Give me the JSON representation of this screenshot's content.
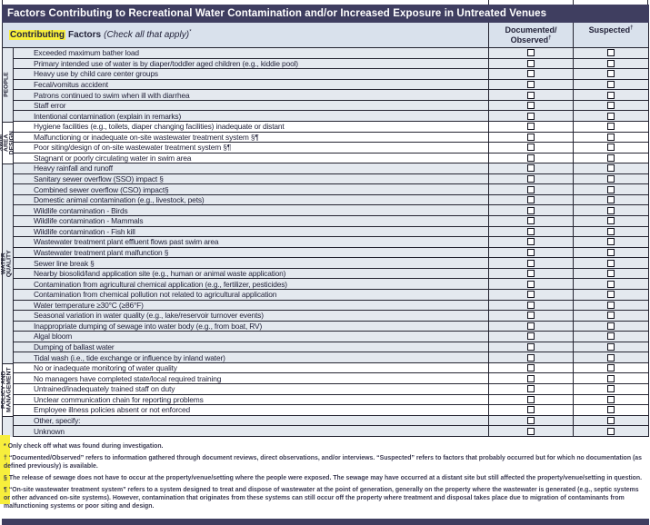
{
  "title": "Factors Contributing to Recreational Water Contamination and/or Increased Exposure in Untreated Venues",
  "header": {
    "highlight_word": "Contributing",
    "factors_word": "Factors",
    "instruction": "(Check all that apply)",
    "asterisk": "*",
    "dagger": "†",
    "col_documented_line1": "Documented/",
    "col_documented_line2": "Observed",
    "col_suspected": "Suspected"
  },
  "colors": {
    "title_bar_bg": "#3f3e60",
    "header_row_bg": "#d9e1ec",
    "shaded_row_bg": "#e4e9ef",
    "highlight_yellow": "#f7ee3c",
    "border": "#232330"
  },
  "factors": [
    "Exceeded maximum bather load",
    "Primary intended use of water is by diaper/toddler aged children (e.g., kiddie pool)",
    "Heavy use by child care center groups",
    "Fecal/vomitus accident",
    "Patrons continued to swim when ill with diarrhea",
    "Staff error",
    "Intentional contamination (explain in remarks)",
    "Hygiene facilities (e.g., toilets, diaper changing facilities) inadequate or distant",
    "Malfunctioning or inadequate on-site wastewater treatment system §¶",
    "Poor siting/design of on-site wastewater treatment system §¶",
    "Stagnant or poorly circulating water in swim area",
    "Heavy rainfall and runoff",
    "Sanitary sewer overflow (SSO) impact §",
    "Combined sewer overflow (CSO) impact§",
    "Domestic animal contamination (e.g., livestock, pets)",
    "Wildlife contamination - Birds",
    "Wildlife contamination - Mammals",
    "Wildlife contamination - Fish kill",
    "Wastewater treatment plant effluent flows past swim area",
    "Wastewater treatment plant malfunction §",
    "Sewer line break §",
    "Nearby biosolid/land application site (e.g., human or animal waste application)",
    "Contamination from agricultural chemical application (e.g., fertilizer, pesticides)",
    "Contamination from chemical pollution not related to agricultural application",
    "Water temperature ≥30°C (≥86°F)",
    "Seasonal variation in water quality (e.g., lake/reservoir turnover events)",
    "Inappropriate dumping of sewage into water body (e.g., from boat, RV)",
    "Algal bloom",
    "Dumping of ballast water",
    "Tidal wash (i.e., tide exchange or influence by inland water)",
    "No or inadequate monitoring of water quality",
    "No managers have completed state/local required training",
    "Untrained/inadequately trained staff on duty",
    "Unclear communication chain for reporting problems",
    "Employee illness policies absent or not enforced",
    "Other, specify:",
    "Unknown"
  ],
  "groups": [
    {
      "label": "PEOPLE",
      "start": 1,
      "end": 7,
      "shaded": true
    },
    {
      "label": "SWIM AREA\nDESIGN",
      "start": 8,
      "end": 11,
      "shaded": false
    },
    {
      "label": "WATER QUALITY",
      "start": 12,
      "end": 30,
      "shaded": true
    },
    {
      "label": "POLICY AND\nMANAGEMENT",
      "start": 31,
      "end": 35,
      "shaded": false
    },
    {
      "label": "",
      "start": 36,
      "end": 37,
      "shaded": true
    }
  ],
  "footnotes": [
    {
      "symbol": "*",
      "text": "Only check off what was found during investigation."
    },
    {
      "symbol": "†",
      "text": "“Documented/Observed” refers to information gathered through document reviews, direct observations, and/or interviews. “Suspected” refers to factors that probably occurred but for which no documentation (as defined previously) is available."
    },
    {
      "symbol": "§",
      "text": "The release of sewage does not have to occur at the property/venue/setting where the people were exposed. The sewage may have occurred at a distant site but still affected the property/venue/setting in question."
    },
    {
      "symbol": "¶",
      "text": "“On-site wastewater treatment system” refers to a system designed to treat and dispose of wastewater at the point of generation, generally on the property where the wastewater is generated (e.g., septic systems or other advanced on-site systems). However, contamination that originates from these systems can still occur off the property where treatment and disposal takes place due to migration of contaminants from malfunctioning systems or poor siting and design."
    }
  ]
}
